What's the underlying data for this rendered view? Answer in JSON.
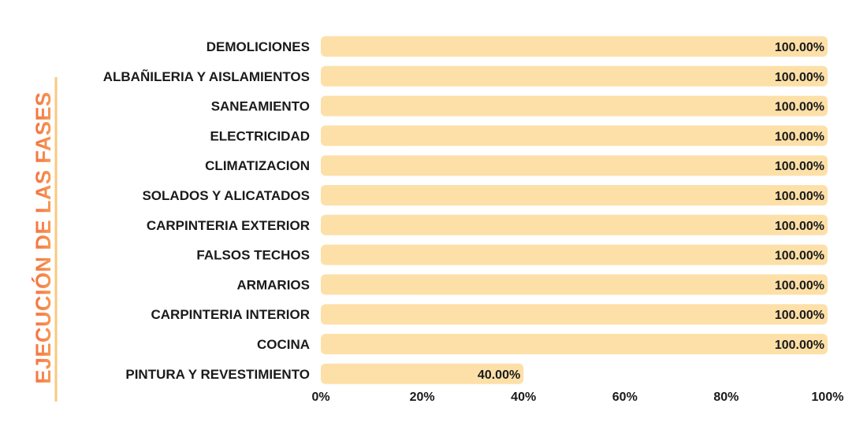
{
  "chart_data": {
    "type": "bar",
    "orientation": "horizontal",
    "title": "EJECUCIÓN DE LAS FASES",
    "categories": [
      "DEMOLICIONES",
      "ALBAÑILERIA Y AISLAMIENTOS",
      "SANEAMIENTO",
      "ELECTRICIDAD",
      "CLIMATIZACION",
      "SOLADOS Y ALICATADOS",
      "CARPINTERIA EXTERIOR",
      "FALSOS TECHOS",
      "ARMARIOS",
      "CARPINTERIA INTERIOR",
      "COCINA",
      "PINTURA Y REVESTIMIENTO"
    ],
    "values": [
      100,
      100,
      100,
      100,
      100,
      100,
      100,
      100,
      100,
      100,
      100,
      40
    ],
    "value_labels": [
      "100.00%",
      "100.00%",
      "100.00%",
      "100.00%",
      "100.00%",
      "100.00%",
      "100.00%",
      "100.00%",
      "100.00%",
      "100.00%",
      "100.00%",
      "40.00%"
    ],
    "x_ticks": [
      "0%",
      "20%",
      "40%",
      "60%",
      "80%",
      "100%"
    ],
    "x_tick_values": [
      0,
      20,
      40,
      60,
      80,
      100
    ],
    "xlim": [
      0,
      100
    ],
    "grid": false,
    "legend": "none",
    "colors": {
      "bar": "#fde0a8",
      "title_gradient_start": "#f7a35c",
      "title_gradient_end": "#f26a3a",
      "title_accent_line": "#f9c97e",
      "text": "#1a1a1a"
    }
  }
}
